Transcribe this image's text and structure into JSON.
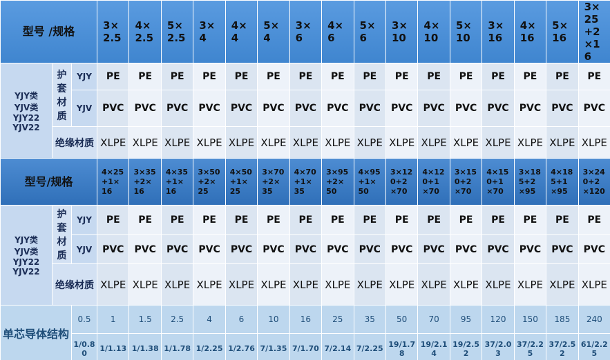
{
  "section1": {
    "header": "型号 /规格",
    "specs": [
      "3×2.5",
      "4×2.5",
      "5×2.5",
      "3×4",
      "4×4",
      "5×4",
      "3×6",
      "4×6",
      "5×6",
      "3×10",
      "4×10",
      "5×10",
      "3×16",
      "4×16",
      "5×16",
      "3×25+2×16"
    ],
    "group": [
      "YJY类",
      "YJV类",
      "YJY22",
      "YJV22"
    ],
    "sheath_label": "护套材质",
    "rows": [
      {
        "label": "YJY",
        "values": [
          "PE",
          "PE",
          "PE",
          "PE",
          "PE",
          "PE",
          "PE",
          "PE",
          "PE",
          "PE",
          "PE",
          "PE",
          "PE",
          "PE",
          "PE",
          "PE"
        ]
      },
      {
        "label": "YJV",
        "values": [
          "PVC",
          "PVC",
          "PVC",
          "PVC",
          "PVC",
          "PVC",
          "PVC",
          "PVC",
          "PVC",
          "PVC",
          "PVC",
          "PVC",
          "PVC",
          "PVC",
          "PVC",
          "PVC"
        ]
      }
    ],
    "insulation_label": "绝缘材质",
    "insulation": [
      "XLPE",
      "XLPE",
      "XLPE",
      "XLPE",
      "XLPE",
      "XLPE",
      "XLPE",
      "XLPE",
      "XLPE",
      "XLPE",
      "XLPE",
      "XLPE",
      "XLPE",
      "XLPE",
      "XLPE",
      "XLPE"
    ]
  },
  "section2": {
    "header": "型号/规格",
    "specs": [
      "4×25+1×16",
      "3×35+2×16",
      "4×35+1×16",
      "3×50+2×25",
      "4×50+1×25",
      "3×70+2×35",
      "4×70+1×35",
      "3×95+2×50",
      "4×95+1×50",
      "3×120+2×70",
      "4×120+1×70",
      "3×150+2×70",
      "4×150+1×70",
      "3×185+2×95",
      "4×185+1×95",
      "3×240+2×120"
    ],
    "group": [
      "YJY类",
      "YJV类",
      "YJY22",
      "YJV22"
    ],
    "sheath_label": "护套材质",
    "rows": [
      {
        "label": "YJY",
        "values": [
          "PE",
          "PE",
          "PE",
          "PE",
          "PE",
          "PE",
          "PE",
          "PE",
          "PE",
          "PE",
          "PE",
          "PE",
          "PE",
          "PE",
          "PE",
          "PE"
        ]
      },
      {
        "label": "YJV",
        "values": [
          "PVC",
          "PVC",
          "PVC",
          "PVC",
          "PVC",
          "PVC",
          "PVC",
          "PVC",
          "PVC",
          "PVC",
          "PVC",
          "PVC",
          "PVC",
          "PVC",
          "PVC",
          "PVC"
        ]
      }
    ],
    "insulation_label": "绝缘材质",
    "insulation": [
      "XLPE",
      "XLPE",
      "XLPE",
      "XLPE",
      "XLPE",
      "XLPE",
      "XLPE",
      "XLPE",
      "XLPE",
      "XLPE",
      "XLPE",
      "XLPE",
      "XLPE",
      "XLPE",
      "XLPE",
      "XLPE"
    ]
  },
  "conductor": {
    "label": "单芯导体结构",
    "sizes": [
      "0.5",
      "1",
      "1.5",
      "2.5",
      "4",
      "6",
      "10",
      "16",
      "25",
      "35",
      "50",
      "70",
      "95",
      "120",
      "150",
      "185",
      "240"
    ],
    "structures": [
      "1/0.80",
      "1/1.13",
      "1/1.38",
      "1/1.78",
      "1/2.25",
      "1/2.76",
      "7/1.35",
      "7/1.70",
      "7/2.14",
      "7/2.25",
      "19/1.78",
      "19/2.14",
      "19/2.52",
      "37/2.03",
      "37/2.25",
      "37/2.52",
      "61/2.25"
    ]
  }
}
